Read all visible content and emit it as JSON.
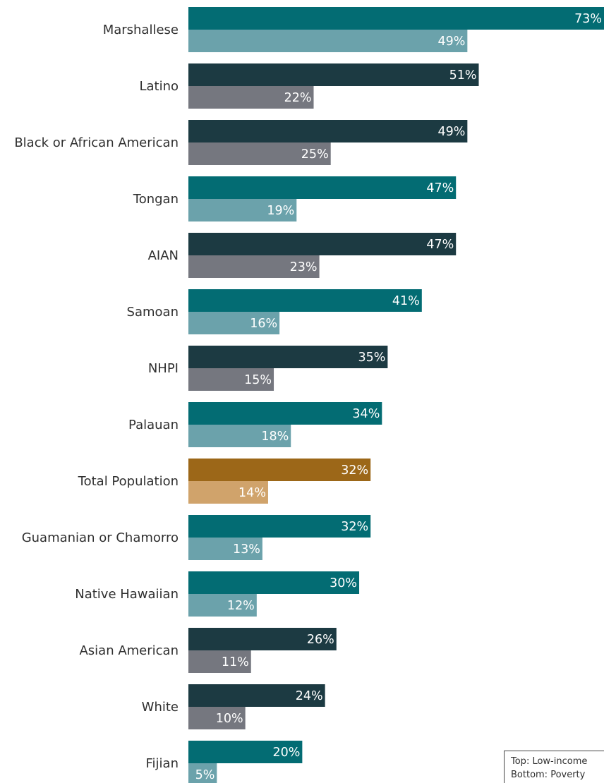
{
  "chart_data": {
    "type": "bar",
    "orientation": "horizontal",
    "categories": [
      "Marshallese",
      "Latino",
      "Black or African American",
      "Tongan",
      "AIAN",
      "Samoan",
      "NHPI",
      "Palauan",
      "Total Population",
      "Guamanian or Chamorro",
      "Native Hawaiian",
      "Asian American",
      "White",
      "Fijian"
    ],
    "series": [
      {
        "name": "Low-income",
        "values": [
          73,
          51,
          49,
          47,
          47,
          41,
          35,
          34,
          32,
          32,
          30,
          26,
          24,
          20
        ]
      },
      {
        "name": "Poverty",
        "values": [
          49,
          22,
          25,
          19,
          23,
          16,
          15,
          18,
          14,
          13,
          12,
          11,
          10,
          5
        ]
      }
    ],
    "value_suffix": "%",
    "xlim": [
      0,
      73
    ],
    "grid": false,
    "legend_placement": "bottom-right",
    "category_groups": [
      "nhpi",
      "other",
      "other",
      "nhpi",
      "other",
      "nhpi",
      "other",
      "nhpi",
      "total",
      "nhpi",
      "nhpi",
      "other",
      "other",
      "nhpi"
    ],
    "colors": {
      "nhpi": {
        "top": "#036c73",
        "bottom": "#6ba2ab"
      },
      "other": {
        "top": "#1c3a42",
        "bottom": "#75777f"
      },
      "total": {
        "top": "#9c6718",
        "bottom": "#d0a36b"
      }
    }
  },
  "legend": {
    "top_text": "Top: Low-income",
    "bottom_text": "Bottom: Poverty"
  }
}
